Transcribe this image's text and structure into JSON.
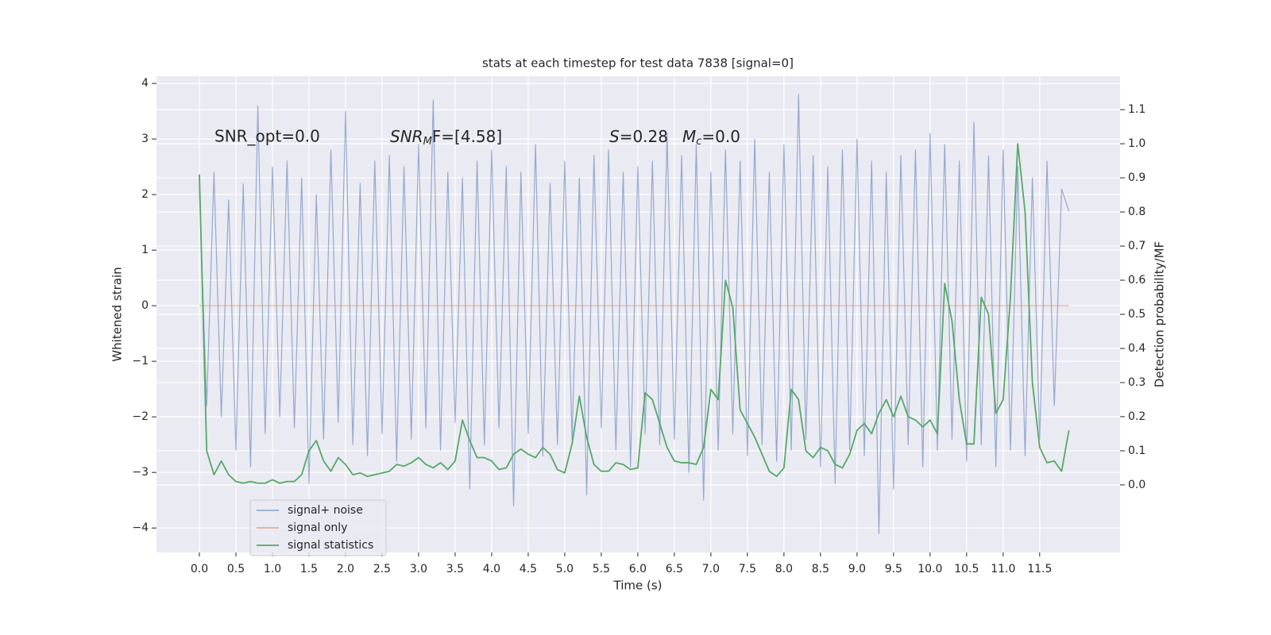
{
  "chart_data": {
    "type": "line",
    "title": "stats at each timestep for test data 7838 [signal=0]",
    "xlabel": "Time (s)",
    "ylabel": "Whitened strain",
    "y2label": "Detection probability/MF",
    "annotations": [
      {
        "text": "SNR_opt=0.0"
      },
      {
        "base": "SNR",
        "sub": "M",
        "rest": "F=[4.58]"
      },
      {
        "base": "S",
        "rest": "=0.28"
      },
      {
        "base": "M",
        "sub": "c",
        "rest": "=0.0"
      }
    ],
    "x": [
      0,
      0.1,
      0.2,
      0.3,
      0.4,
      0.5,
      0.6,
      0.7,
      0.8,
      0.9,
      1,
      1.1,
      1.2,
      1.3,
      1.4,
      1.5,
      1.6,
      1.7,
      1.8,
      1.9,
      2,
      2.1,
      2.2,
      2.3,
      2.4,
      2.5,
      2.6,
      2.7,
      2.8,
      2.9,
      3,
      3.1,
      3.2,
      3.3,
      3.4,
      3.5,
      3.6,
      3.7,
      3.8,
      3.9,
      4,
      4.1,
      4.2,
      4.3,
      4.4,
      4.5,
      4.6,
      4.7,
      4.8,
      4.9,
      5,
      5.1,
      5.2,
      5.3,
      5.4,
      5.5,
      5.6,
      5.7,
      5.8,
      5.9,
      6,
      6.1,
      6.2,
      6.3,
      6.4,
      6.5,
      6.6,
      6.7,
      6.8,
      6.9,
      7,
      7.1,
      7.2,
      7.3,
      7.4,
      7.5,
      7.6,
      7.7,
      7.8,
      7.9,
      8,
      8.1,
      8.2,
      8.3,
      8.4,
      8.5,
      8.6,
      8.7,
      8.8,
      8.9,
      9,
      9.1,
      9.2,
      9.3,
      9.4,
      9.5,
      9.6,
      9.7,
      9.8,
      9.9,
      10,
      10.1,
      10.2,
      10.3,
      10.4,
      10.5,
      10.6,
      10.7,
      10.8,
      10.9,
      11,
      11.1,
      11.2,
      11.3,
      11.4,
      11.5,
      11.6,
      11.7,
      11.8,
      11.9
    ],
    "series": [
      {
        "name": "signal+ noise",
        "color": "#4c72b0",
        "opacity": 0.55,
        "axis": "y",
        "values": [
          2.1,
          -1.8,
          2.4,
          -2.0,
          1.9,
          -2.6,
          2.2,
          -2.9,
          3.6,
          -2.3,
          2.5,
          -2.0,
          2.6,
          -2.2,
          2.3,
          -3.2,
          2.0,
          -2.4,
          2.8,
          -2.1,
          3.5,
          -2.5,
          2.2,
          -2.7,
          2.6,
          -2.3,
          2.7,
          -2.8,
          2.5,
          -2.4,
          2.9,
          -2.2,
          3.7,
          -2.6,
          2.4,
          -2.1,
          2.3,
          -3.3,
          2.6,
          -2.5,
          2.8,
          -2.2,
          2.5,
          -3.6,
          2.4,
          -2.3,
          2.9,
          -2.7,
          2.2,
          -2.5,
          2.6,
          -2.4,
          2.3,
          -3.4,
          2.7,
          -2.2,
          2.8,
          -2.6,
          2.4,
          -2.9,
          2.5,
          -2.3,
          2.6,
          -2.5,
          3.1,
          -2.4,
          2.7,
          -3.0,
          2.9,
          -3.5,
          2.4,
          -2.6,
          2.8,
          -2.3,
          2.6,
          -2.7,
          3.0,
          -2.5,
          2.4,
          -2.8,
          2.9,
          -2.6,
          3.8,
          -2.4,
          2.7,
          -2.9,
          2.5,
          -3.2,
          2.8,
          -2.6,
          3.0,
          -2.7,
          2.6,
          -4.1,
          2.4,
          -3.3,
          2.7,
          -2.5,
          2.8,
          -2.9,
          3.1,
          -2.6,
          2.9,
          -2.4,
          2.6,
          -2.8,
          3.3,
          -2.5,
          2.7,
          -2.9,
          2.8,
          -2.6,
          2.5,
          -2.7,
          2.3,
          -2.4,
          2.6,
          -1.8,
          2.1,
          1.7
        ]
      },
      {
        "name": "signal only",
        "color": "#dd8452",
        "opacity": 0.6,
        "axis": "y",
        "x": [
          0,
          11.9
        ],
        "values": [
          0,
          0
        ]
      },
      {
        "name": "signal statistics",
        "color": "#55a868",
        "opacity": 1,
        "axis": "y2",
        "values": [
          0.91,
          0.1,
          0.03,
          0.07,
          0.03,
          0.01,
          0.005,
          0.01,
          0.005,
          0.005,
          0.015,
          0.005,
          0.01,
          0.01,
          0.03,
          0.1,
          0.13,
          0.07,
          0.04,
          0.08,
          0.06,
          0.03,
          0.035,
          0.025,
          0.03,
          0.035,
          0.04,
          0.06,
          0.055,
          0.065,
          0.08,
          0.06,
          0.05,
          0.065,
          0.045,
          0.07,
          0.19,
          0.13,
          0.08,
          0.08,
          0.07,
          0.045,
          0.05,
          0.09,
          0.105,
          0.09,
          0.08,
          0.11,
          0.09,
          0.045,
          0.035,
          0.12,
          0.26,
          0.14,
          0.06,
          0.04,
          0.04,
          0.065,
          0.06,
          0.045,
          0.05,
          0.27,
          0.25,
          0.18,
          0.11,
          0.07,
          0.065,
          0.065,
          0.06,
          0.11,
          0.28,
          0.25,
          0.6,
          0.52,
          0.22,
          0.18,
          0.14,
          0.09,
          0.04,
          0.025,
          0.05,
          0.28,
          0.25,
          0.1,
          0.08,
          0.11,
          0.1,
          0.06,
          0.05,
          0.09,
          0.16,
          0.18,
          0.15,
          0.21,
          0.25,
          0.2,
          0.26,
          0.2,
          0.19,
          0.17,
          0.19,
          0.15,
          0.59,
          0.48,
          0.25,
          0.12,
          0.12,
          0.55,
          0.5,
          0.21,
          0.25,
          0.55,
          1.0,
          0.8,
          0.3,
          0.11,
          0.065,
          0.07,
          0.04,
          0.16
        ]
      }
    ],
    "xlim": [
      -0.587,
      12.6
    ],
    "xticks": [
      {
        "value": 0,
        "label": "0.0"
      },
      0.5,
      {
        "value": 1,
        "label": "1.0"
      },
      1.5,
      {
        "value": 2,
        "label": "2.0"
      },
      2.5,
      {
        "value": 3,
        "label": "3.0"
      },
      3.5,
      {
        "value": 4,
        "label": "4.0"
      },
      4.5,
      {
        "value": 5,
        "label": "5.0"
      },
      5.5,
      {
        "value": 6,
        "label": "6.0"
      },
      6.5,
      {
        "value": 7,
        "label": "7.0"
      },
      7.5,
      {
        "value": 8,
        "label": "8.0"
      },
      8.5,
      {
        "value": 9,
        "label": "9.0"
      },
      9.5,
      {
        "value": 10,
        "label": "10.0"
      },
      10.5,
      {
        "value": 11,
        "label": "11.0"
      },
      11.5
    ],
    "ylim": [
      -4.44,
      4.13
    ],
    "yticks": [
      {
        "value": -4,
        "label": "−4"
      },
      {
        "value": -3,
        "label": "−3"
      },
      {
        "value": -2,
        "label": "−2"
      },
      {
        "value": -1,
        "label": "−1"
      },
      0,
      1,
      2,
      3,
      4
    ],
    "y2lim": [
      -0.198,
      1.198
    ],
    "y2ticks": [
      {
        "value": 0,
        "label": "0.0"
      },
      0.1,
      0.2,
      0.3,
      0.4,
      0.5,
      0.6,
      0.7,
      0.8,
      0.9,
      {
        "value": 1,
        "label": "1.0"
      },
      1.1
    ],
    "grid": true,
    "legend": "lower left"
  }
}
